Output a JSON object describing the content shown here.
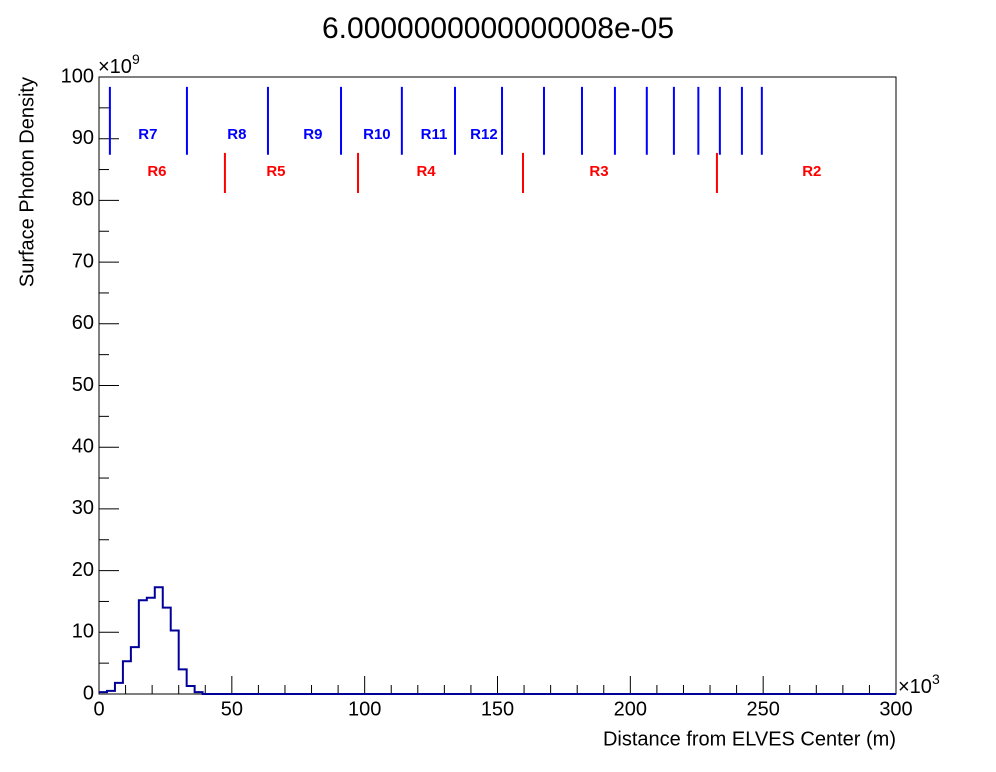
{
  "chart_data": {
    "type": "histogram",
    "title": "6.0000000000000008e-05",
    "xlabel": "Distance from ELVES Center (m)",
    "ylabel": "Surface Photon Density",
    "x_multiplier": "×10",
    "x_multiplier_exp": "3",
    "y_multiplier": "×10",
    "y_multiplier_exp": "9",
    "bins": [
      0,
      3,
      6,
      9,
      12,
      15,
      18,
      21,
      24,
      27,
      30,
      33,
      36,
      39,
      42,
      45,
      48,
      51,
      54,
      57,
      60,
      63,
      66,
      69,
      72,
      75,
      78,
      81,
      84,
      87,
      90,
      93,
      96,
      99,
      102,
      105,
      108,
      111,
      114,
      117,
      120,
      123,
      126,
      129,
      132,
      135,
      138,
      141,
      144,
      147,
      150,
      153,
      156,
      159,
      162,
      165,
      168,
      171,
      174,
      177,
      180,
      183,
      186,
      189,
      192,
      195,
      198,
      201,
      204,
      207,
      210,
      213,
      216,
      219,
      222,
      225,
      228,
      231,
      234,
      237,
      240,
      243,
      246,
      249,
      252,
      255,
      258,
      261,
      264,
      267,
      270,
      273,
      276,
      279,
      282,
      285,
      288,
      291,
      294,
      297,
      300
    ],
    "values": [
      0.3,
      0.5,
      1.8,
      5.3,
      7.6,
      15.2,
      15.6,
      17.3,
      14.0,
      10.3,
      4.0,
      1.3,
      0.3,
      0,
      0,
      0,
      0,
      0,
      0,
      0,
      0,
      0,
      0,
      0,
      0,
      0,
      0,
      0,
      0,
      0,
      0,
      0,
      0,
      0,
      0,
      0,
      0,
      0,
      0,
      0,
      0,
      0,
      0,
      0,
      0,
      0,
      0,
      0,
      0,
      0,
      0,
      0,
      0,
      0,
      0,
      0,
      0,
      0,
      0,
      0,
      0,
      0,
      0,
      0,
      0,
      0,
      0,
      0,
      0,
      0,
      0,
      0,
      0,
      0,
      0,
      0,
      0,
      0,
      0,
      0,
      0,
      0,
      0,
      0,
      0,
      0,
      0,
      0,
      0,
      0,
      0,
      0,
      0,
      0,
      0,
      0,
      0,
      0,
      0,
      0
    ],
    "color": "#000099",
    "xlim": [
      0,
      300
    ],
    "xticks": [
      0,
      50,
      100,
      150,
      200,
      250,
      300
    ],
    "ylim": [
      0,
      100
    ],
    "yticks": [
      0,
      10,
      20,
      30,
      40,
      50,
      60,
      70,
      80,
      90,
      100
    ],
    "blue_color": "#0000ff",
    "blue_lines": [
      4.1,
      33.1,
      63.6,
      91.1,
      114.0,
      134.0,
      151.7,
      167.5,
      181.8,
      194.2,
      206.2,
      216.4,
      225.6,
      233.7,
      242.0,
      249.5
    ],
    "blue_line_y": [
      87.4,
      98.4
    ],
    "blue_labels": [
      {
        "text": "R7",
        "x": 18.4
      },
      {
        "text": "R8",
        "x": 51.9
      },
      {
        "text": "R9",
        "x": 80.5
      },
      {
        "text": "R10",
        "x": 104.6
      },
      {
        "text": "R11",
        "x": 126.1
      },
      {
        "text": "R12",
        "x": 144.9
      }
    ],
    "blue_label_y": 90.6,
    "red_color": "#ff0000",
    "red_lines": [
      47.4,
      97.5,
      159.6,
      232.6
    ],
    "red_line_y": [
      81.2,
      87.7
    ],
    "red_labels": [
      {
        "text": "R6",
        "x": 21.8
      },
      {
        "text": "R5",
        "x": 66.6
      },
      {
        "text": "R4",
        "x": 123.1
      },
      {
        "text": "R3",
        "x": 188.2
      },
      {
        "text": "R2",
        "x": 268.3
      }
    ],
    "red_label_y": 84.6
  }
}
